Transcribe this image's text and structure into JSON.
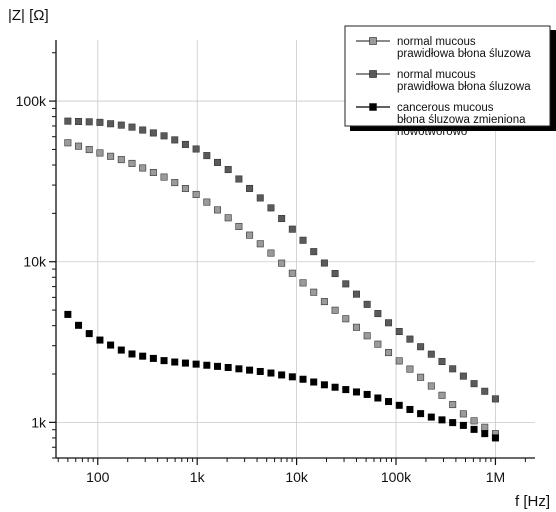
{
  "chart_data": {
    "type": "scatter",
    "xscale": "log",
    "yscale": "log",
    "xlabel": "f [Hz]",
    "ylabel": "|Z| [Ω]",
    "xlim": [
      38,
      2500000
    ],
    "ylim": [
      600,
      240000
    ],
    "xticks": [
      100,
      1000,
      10000,
      100000,
      1000000
    ],
    "xtick_labels": [
      "100",
      "1k",
      "10k",
      "100k",
      "1M"
    ],
    "yticks": [
      1000,
      10000,
      100000
    ],
    "ytick_labels": [
      "1k",
      "10k",
      "100k"
    ],
    "grid": true,
    "legend_position": "top-right",
    "series": [
      {
        "name": [
          "normal mucous",
          "prawidłowa błona śluzowa"
        ],
        "color": "#9a9a9a",
        "marker": "square",
        "points": [
          [
            50,
            55000
          ],
          [
            100,
            48000
          ],
          [
            200,
            42000
          ],
          [
            500,
            33000
          ],
          [
            1000,
            26000
          ],
          [
            2000,
            19000
          ],
          [
            5000,
            12000
          ],
          [
            10000,
            8000
          ],
          [
            20000,
            5500
          ],
          [
            50000,
            3500
          ],
          [
            100000,
            2500
          ],
          [
            200000,
            1800
          ],
          [
            500000,
            1100
          ],
          [
            1000000,
            850
          ]
        ]
      },
      {
        "name": [
          "normal mucous",
          "prawidłowa błona śluzowa"
        ],
        "color": "#5a5a5a",
        "marker": "square",
        "points": [
          [
            50,
            75000
          ],
          [
            100,
            74000
          ],
          [
            200,
            70000
          ],
          [
            500,
            60000
          ],
          [
            1000,
            50000
          ],
          [
            2000,
            38000
          ],
          [
            5000,
            23000
          ],
          [
            10000,
            15000
          ],
          [
            20000,
            9500
          ],
          [
            50000,
            5500
          ],
          [
            100000,
            3800
          ],
          [
            200000,
            2800
          ],
          [
            500000,
            1900
          ],
          [
            1000000,
            1400
          ]
        ]
      },
      {
        "name": [
          "cancerous mucous",
          "błona śluzowa zmieniona",
          "nowotworowo"
        ],
        "color": "#000000",
        "marker": "square",
        "points": [
          [
            50,
            4700
          ],
          [
            70,
            3800
          ],
          [
            100,
            3300
          ],
          [
            200,
            2700
          ],
          [
            500,
            2400
          ],
          [
            1000,
            2300
          ],
          [
            2000,
            2200
          ],
          [
            5000,
            2050
          ],
          [
            10000,
            1900
          ],
          [
            20000,
            1700
          ],
          [
            50000,
            1500
          ],
          [
            100000,
            1300
          ],
          [
            200000,
            1100
          ],
          [
            500000,
            950
          ],
          [
            1000000,
            800
          ]
        ]
      }
    ]
  }
}
